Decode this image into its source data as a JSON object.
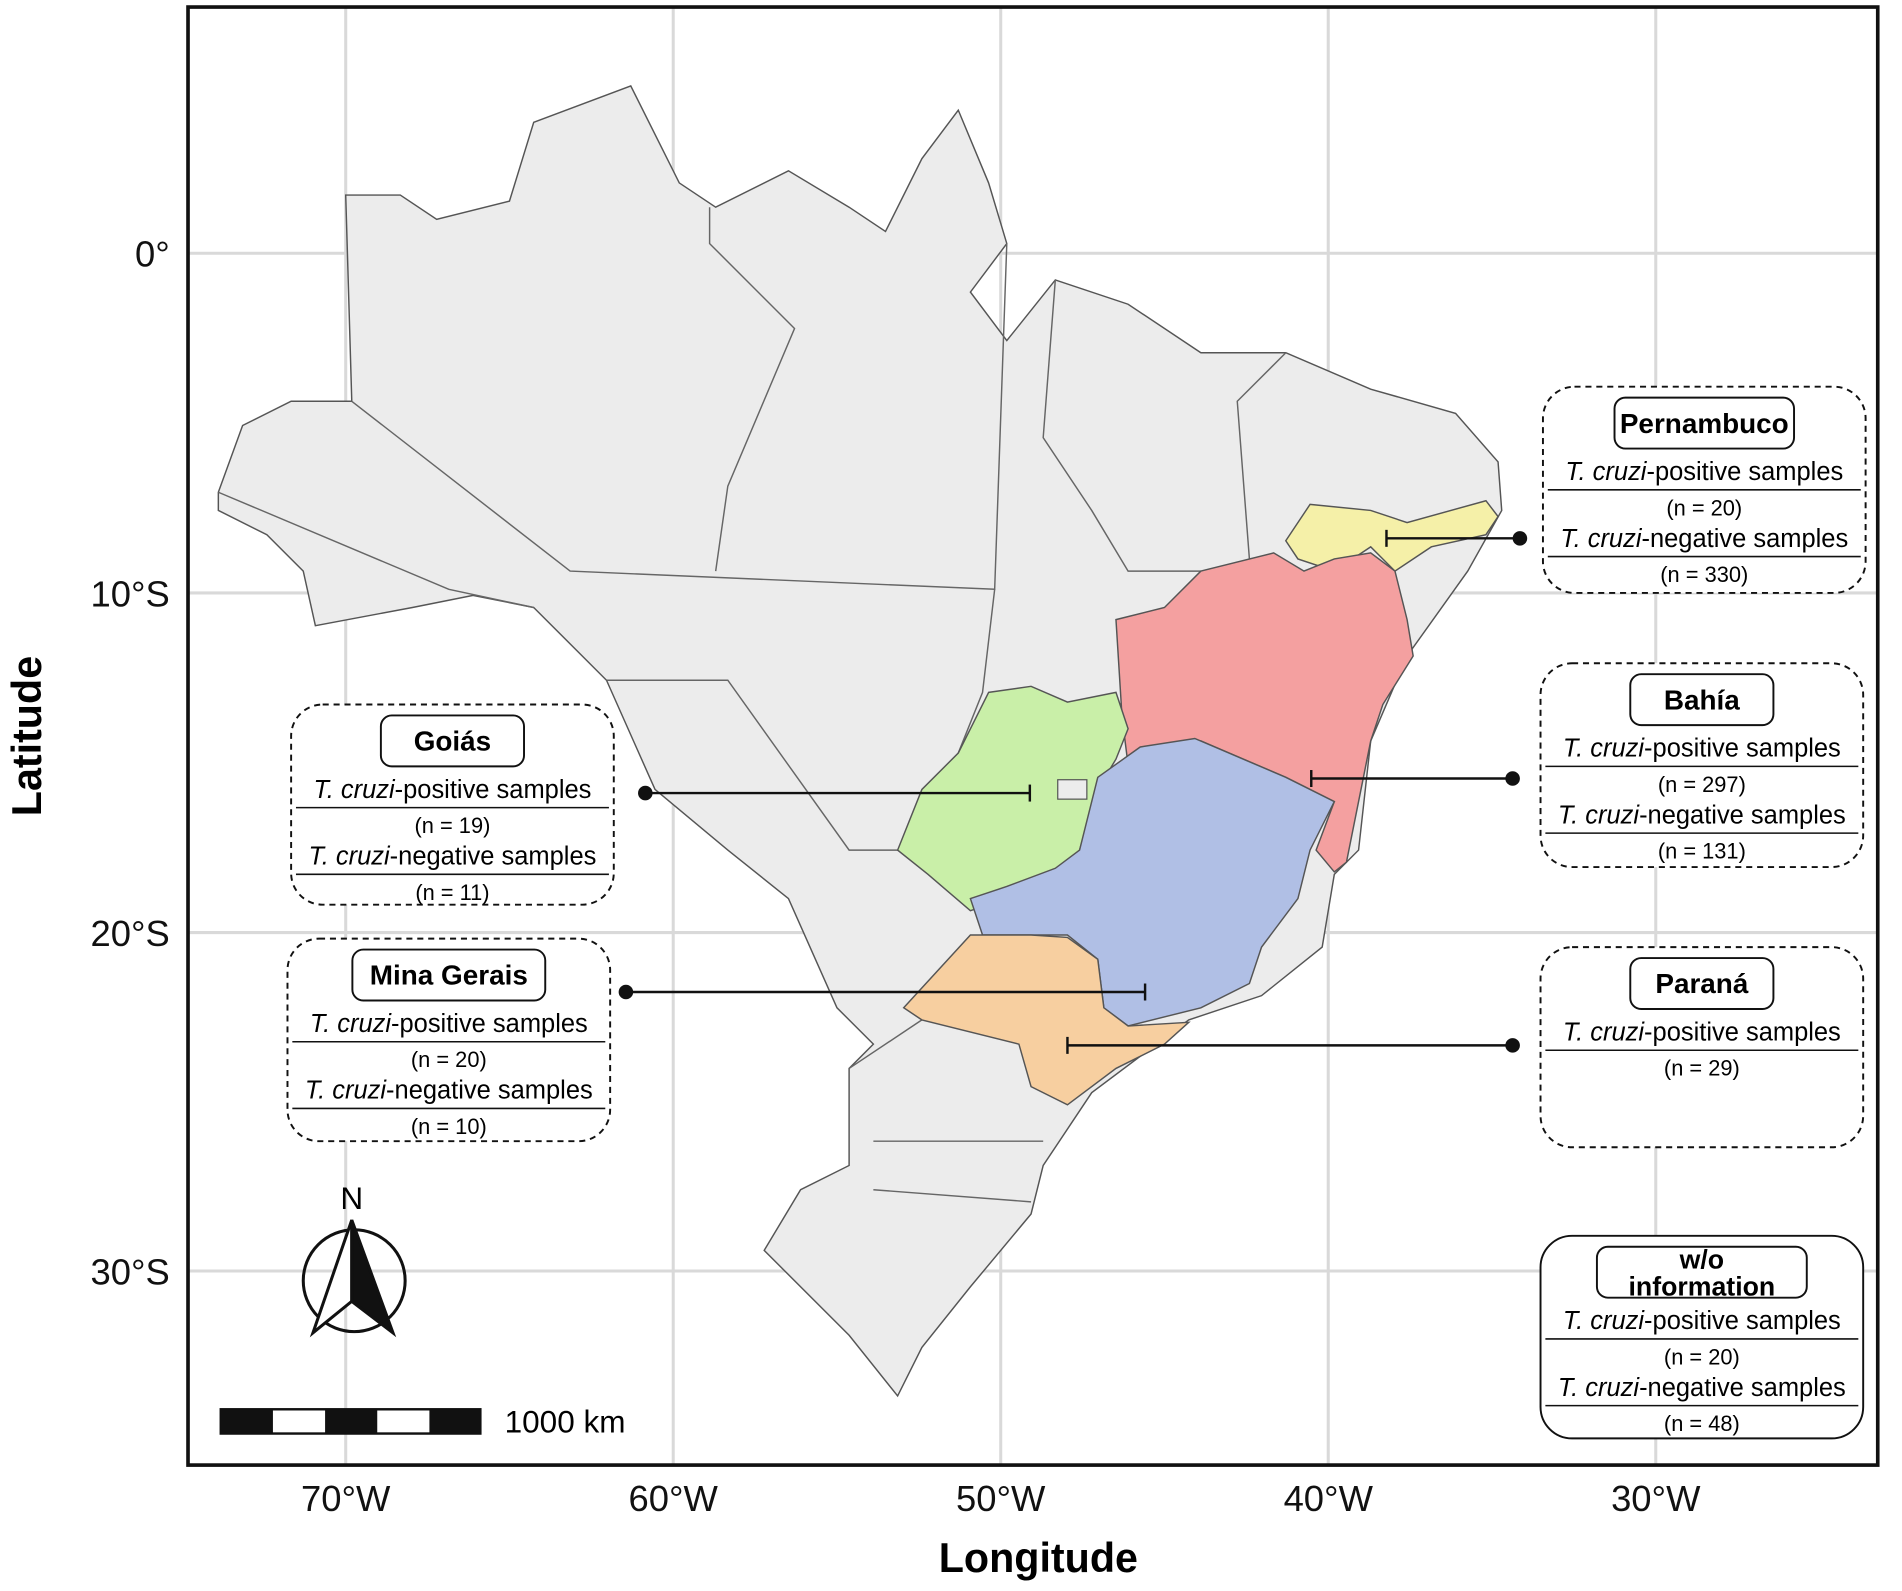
{
  "map": {
    "x_axis_title": "Longitude",
    "y_axis_title": "Latitude",
    "x_ticks": [
      "70°W",
      "60°W",
      "50°W",
      "40°W",
      "30°W"
    ],
    "y_ticks": [
      "0°",
      "10°S",
      "20°S",
      "30°S"
    ],
    "north": "N",
    "scale_label": "1000 km",
    "boxes": [
      {
        "title": "Pernambuco",
        "rows": [
          {
            "species": "T. cruzi",
            "rest": "-positive samples",
            "n": "(n = 20)"
          },
          {
            "species": "T. cruzi",
            "rest": "-negative samples",
            "n": "(n = 330)"
          }
        ]
      },
      {
        "title": "Bahía",
        "rows": [
          {
            "species": "T. cruzi",
            "rest": "-positive samples",
            "n": "(n = 297)"
          },
          {
            "species": "T. cruzi",
            "rest": "-negative samples",
            "n": "(n = 131)"
          }
        ]
      },
      {
        "title": "Goiás",
        "rows": [
          {
            "species": "T. cruzi",
            "rest": "-positive samples",
            "n": "(n = 19)"
          },
          {
            "species": "T. cruzi",
            "rest": "-negative samples",
            "n": "(n = 11)"
          }
        ]
      },
      {
        "title": "Mina Gerais",
        "rows": [
          {
            "species": "T. cruzi",
            "rest": "-positive samples",
            "n": "(n = 20)"
          },
          {
            "species": "T. cruzi",
            "rest": "-negative samples",
            "n": "(n = 10)"
          }
        ]
      },
      {
        "title": "Paraná",
        "rows": [
          {
            "species": "T. cruzi",
            "rest": "-positive samples",
            "n": "(n = 29)"
          }
        ]
      },
      {
        "title": "w/o information",
        "rows": [
          {
            "species": "T. cruzi",
            "rest": "-positive samples",
            "n": "(n = 20)"
          },
          {
            "species": "T. cruzi",
            "rest": "-negative samples",
            "n": "(n = 48)"
          }
        ]
      }
    ]
  }
}
